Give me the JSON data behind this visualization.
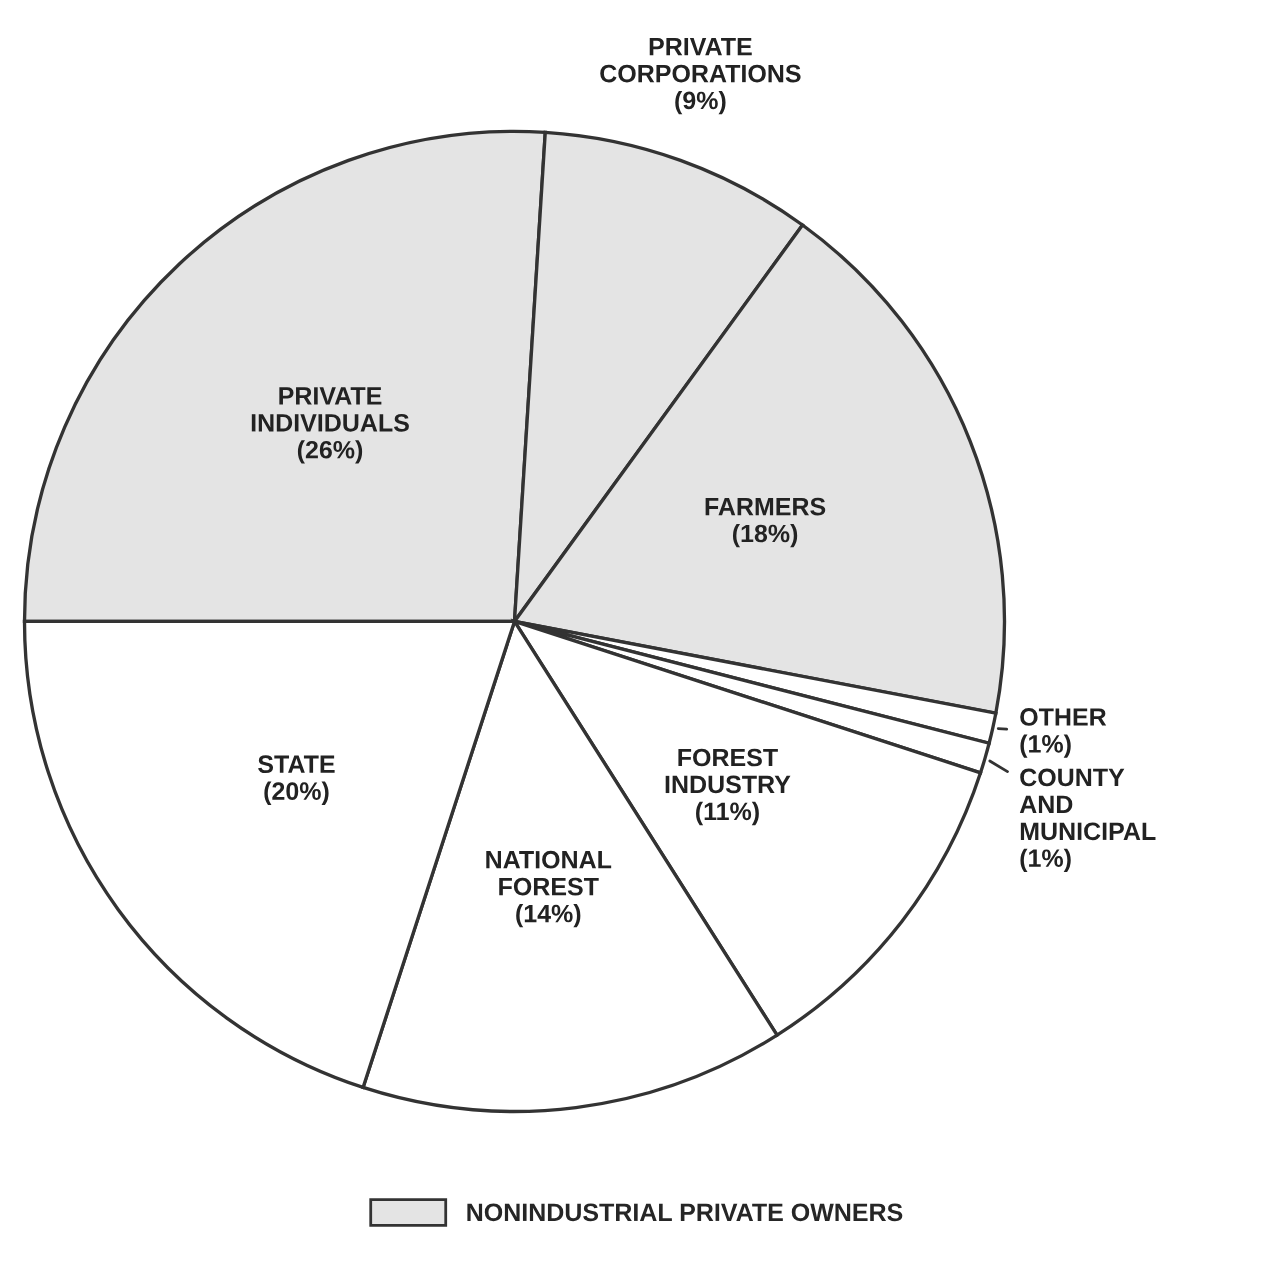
{
  "chart_data": {
    "type": "pie",
    "categories": [
      "PRIVATE INDIVIDUALS",
      "PRIVATE CORPORATIONS",
      "FARMERS",
      "OTHER",
      "COUNTY AND MUNICIPAL",
      "FOREST INDUSTRY",
      "NATIONAL FOREST",
      "STATE"
    ],
    "values": [
      26,
      9,
      18,
      1,
      1,
      11,
      14,
      20
    ],
    "value_labels": [
      "(26%)",
      "(9%)",
      "(18%)",
      "(1%)",
      "(1%)",
      "(11%)",
      "(14%)",
      "(20%)"
    ],
    "colors": [
      "#e4e4e4",
      "#e4e4e4",
      "#e4e4e4",
      "#ffffff",
      "#ffffff",
      "#ffffff",
      "#ffffff",
      "#ffffff"
    ],
    "legend_title": "NONINDUSTRIAL PRIVATE OWNERS"
  }
}
